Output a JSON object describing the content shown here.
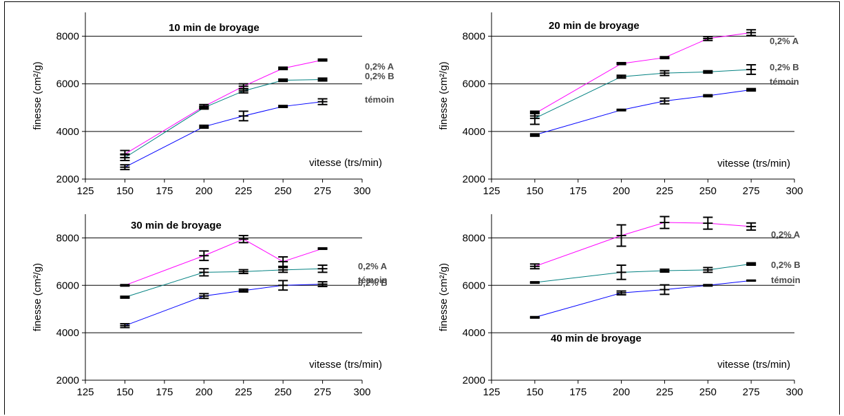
{
  "chart_data": [
    {
      "type": "line",
      "title": "10 min de broyage",
      "xlabel": "vitesse (trs/min)",
      "ylabel": "finesse (cm²/g)",
      "xlim": [
        125,
        300
      ],
      "ylim": [
        2000,
        9000
      ],
      "xticks": [
        125,
        150,
        175,
        200,
        225,
        250,
        275,
        300
      ],
      "yticks": [
        2000,
        4000,
        6000,
        8000
      ],
      "grid": "horizontal",
      "x": [
        150,
        200,
        225,
        250,
        275
      ],
      "series": [
        {
          "name": "0,2% A",
          "color": "#ff00ff",
          "values": [
            3050,
            5050,
            5900,
            6650,
            7000
          ],
          "errors": [
            150,
            80,
            100,
            50,
            40
          ]
        },
        {
          "name": "0,2% B",
          "color": "#008080",
          "values": [
            2900,
            5000,
            5700,
            6150,
            6180
          ],
          "errors": [
            120,
            60,
            80,
            50,
            60
          ]
        },
        {
          "name": "témoin",
          "color": "#0000ff",
          "values": [
            2500,
            4200,
            4650,
            5050,
            5250
          ],
          "errors": [
            100,
            60,
            200,
            40,
            120
          ]
        }
      ]
    },
    {
      "type": "line",
      "title": "20 min de broyage",
      "xlabel": "vitesse (trs/min)",
      "ylabel": "finesse (cm²/g)",
      "xlim": [
        125,
        300
      ],
      "ylim": [
        2000,
        9000
      ],
      "xticks": [
        125,
        150,
        175,
        200,
        225,
        250,
        275,
        300
      ],
      "yticks": [
        2000,
        4000,
        6000,
        8000
      ],
      "grid": "horizontal",
      "x": [
        150,
        200,
        225,
        250,
        275
      ],
      "series": [
        {
          "name": "0,2% A",
          "color": "#ff00ff",
          "values": [
            4750,
            6850,
            7100,
            7900,
            8150
          ],
          "errors": [
            100,
            40,
            40,
            80,
            120
          ]
        },
        {
          "name": "0,2% B",
          "color": "#008080",
          "values": [
            4550,
            6300,
            6450,
            6500,
            6600
          ],
          "errors": [
            250,
            60,
            100,
            50,
            200
          ]
        },
        {
          "name": "témoin",
          "color": "#0000ff",
          "values": [
            3850,
            4900,
            5280,
            5500,
            5750
          ],
          "errors": [
            50,
            30,
            120,
            40,
            50
          ]
        }
      ]
    },
    {
      "type": "line",
      "title": "30 min de broyage",
      "xlabel": "vitesse (trs/min)",
      "ylabel": "finesse (cm²/g)",
      "xlim": [
        125,
        300
      ],
      "ylim": [
        2000,
        9000
      ],
      "xticks": [
        125,
        150,
        175,
        200,
        225,
        250,
        275,
        300
      ],
      "yticks": [
        2000,
        4000,
        6000,
        8000
      ],
      "grid": "horizontal",
      "x": [
        150,
        200,
        225,
        250,
        275
      ],
      "series": [
        {
          "name": "0,2% A",
          "color": "#ff00ff",
          "values": [
            6000,
            7250,
            7950,
            7000,
            7550
          ],
          "errors": [
            30,
            200,
            150,
            200,
            30
          ]
        },
        {
          "name": "0,2% B",
          "color": "#008080",
          "values": [
            5500,
            6550,
            6580,
            6650,
            6700
          ],
          "errors": [
            40,
            150,
            80,
            100,
            150
          ]
        },
        {
          "name": "témoin",
          "color": "#0000ff",
          "values": [
            4300,
            5550,
            5780,
            6000,
            6050
          ],
          "errors": [
            80,
            100,
            60,
            200,
            100
          ]
        }
      ]
    },
    {
      "type": "line",
      "title": "40 min de broyage",
      "xlabel": "vitesse (trs/min)",
      "ylabel": "finesse (cm²/g)",
      "xlim": [
        125,
        300
      ],
      "ylim": [
        2000,
        9000
      ],
      "xticks": [
        125,
        150,
        175,
        200,
        225,
        250,
        275,
        300
      ],
      "yticks": [
        2000,
        4000,
        6000,
        8000
      ],
      "grid": "horizontal",
      "x": [
        150,
        200,
        225,
        250,
        275
      ],
      "series": [
        {
          "name": "0,2% A",
          "color": "#ff00ff",
          "values": [
            6800,
            8100,
            8650,
            8620,
            8480
          ],
          "errors": [
            100,
            450,
            250,
            250,
            150
          ]
        },
        {
          "name": "0,2% B",
          "color": "#008080",
          "values": [
            6120,
            6550,
            6620,
            6650,
            6900
          ],
          "errors": [
            30,
            300,
            60,
            100,
            50
          ]
        },
        {
          "name": "témoin",
          "color": "#0000ff",
          "values": [
            4650,
            5680,
            5820,
            6000,
            6200
          ],
          "errors": [
            30,
            80,
            200,
            30,
            20
          ]
        }
      ]
    }
  ]
}
